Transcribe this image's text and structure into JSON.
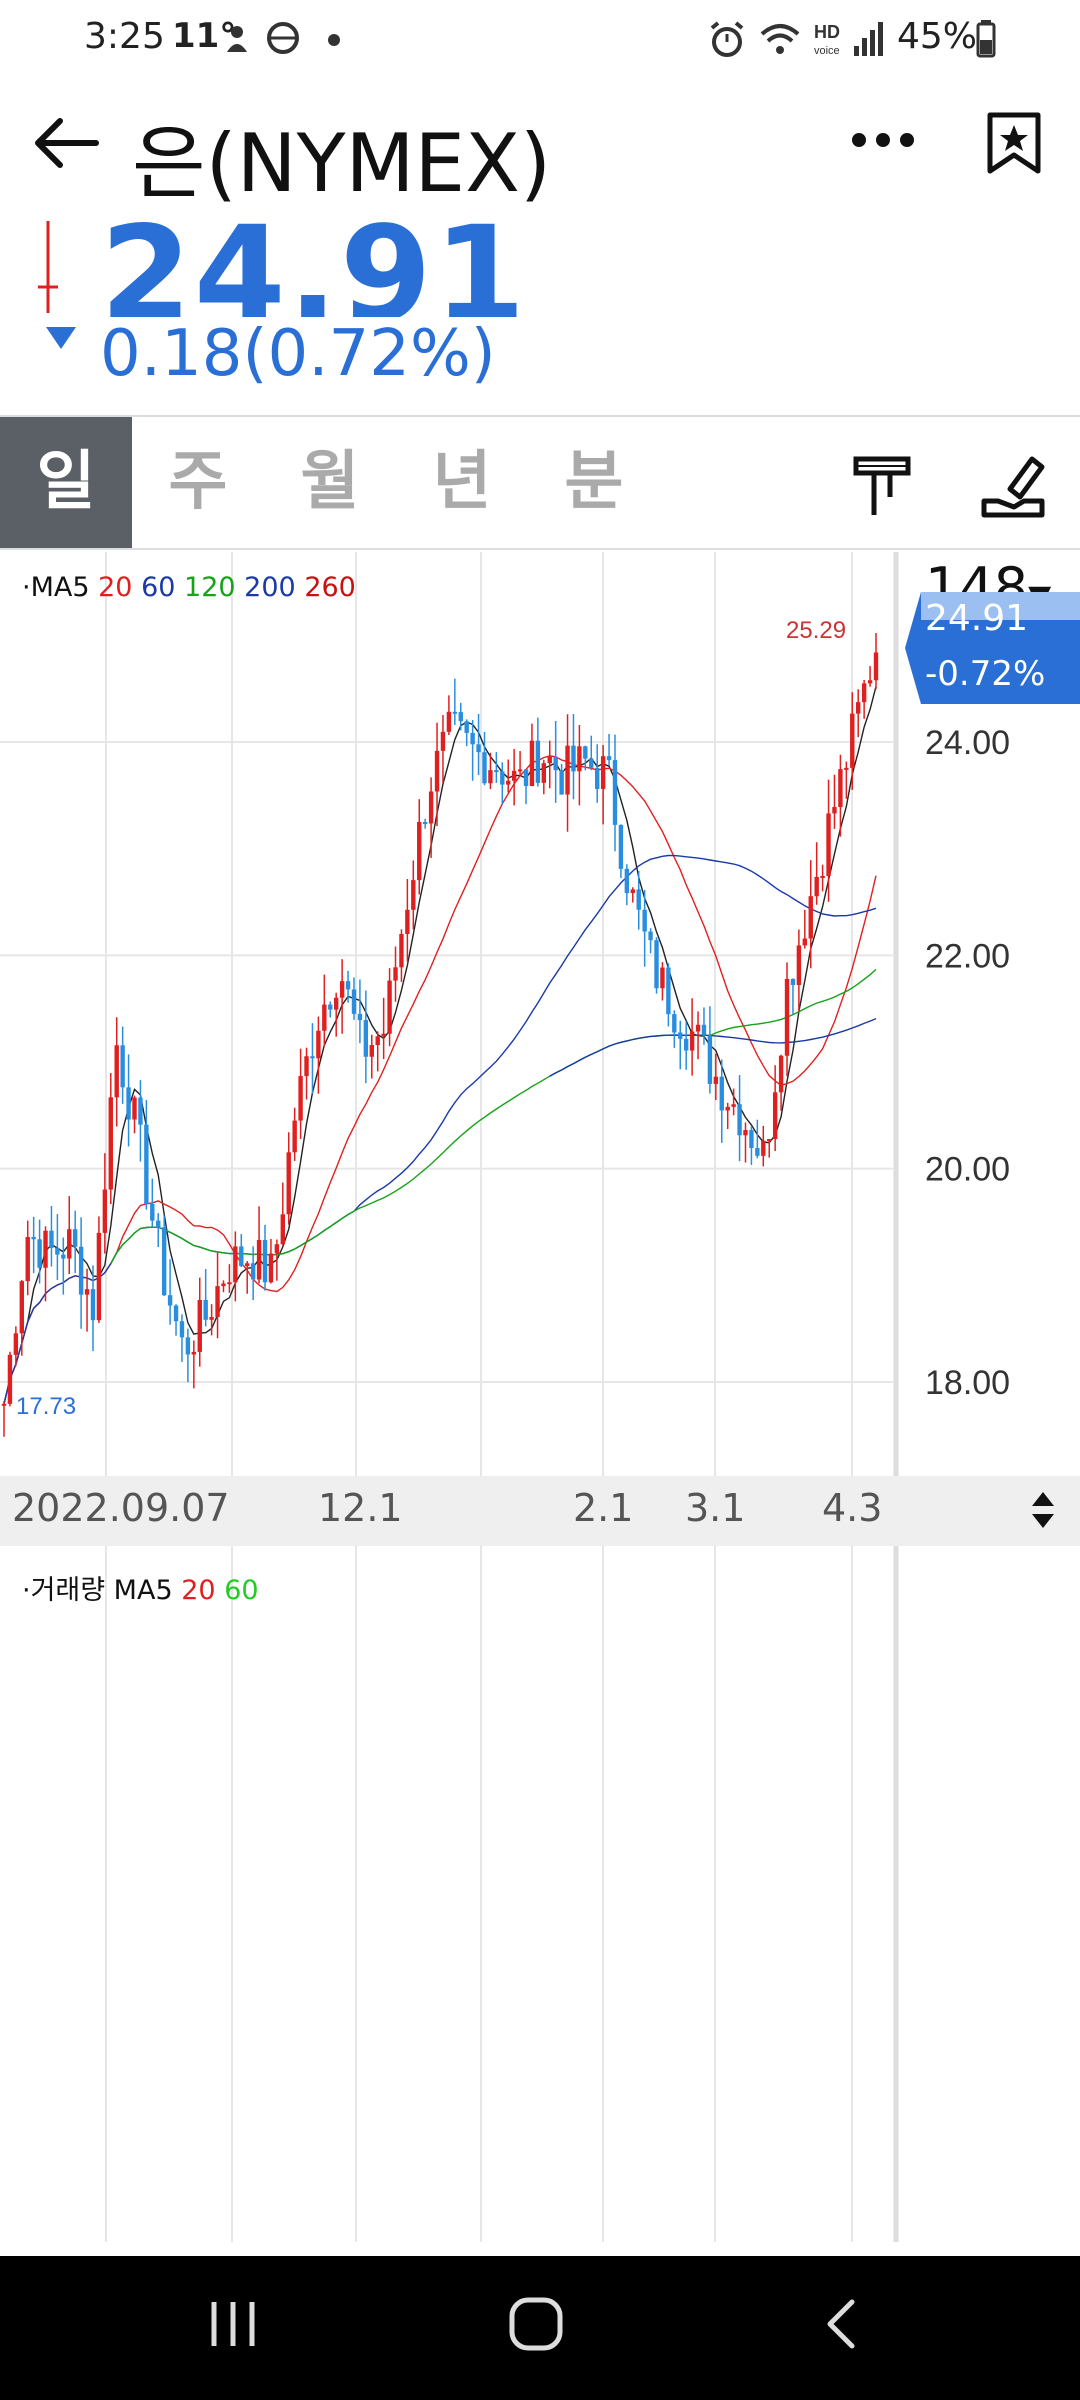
{
  "status": {
    "time": "3:25",
    "temp": "11°",
    "battery": "45%"
  },
  "header": {
    "title": "은(NYMEX)"
  },
  "price": {
    "value": "24.91",
    "change": "0.18(0.72%)",
    "direction": "down"
  },
  "tabs": [
    {
      "label": "일",
      "active": true
    },
    {
      "label": "주",
      "active": false
    },
    {
      "label": "월",
      "active": false
    },
    {
      "label": "년",
      "active": false
    },
    {
      "label": "분",
      "active": false
    }
  ],
  "chart_legend": {
    "prefix": "·MA5",
    "ma20": "20",
    "ma60": "60",
    "ma120": "120",
    "ma200": "200",
    "ma260": "260"
  },
  "volume_legend": {
    "prefix": "·거래량 MA5",
    "ma20": "20",
    "ma60": "60"
  },
  "y_axis": {
    "count": "148",
    "tag_value": "24.91",
    "tag_change": "-0.72%",
    "ticks": [
      "24.00",
      "22.00",
      "20.00",
      "18.00"
    ]
  },
  "annotations": {
    "high": "25.29",
    "low": "17.73"
  },
  "dates": [
    "2022.09.07",
    "12.1",
    "2.1",
    "3.1",
    "4.3"
  ],
  "colors": {
    "up": "#e02020",
    "down": "#2a8ee0",
    "accent": "#2a6fd6",
    "tab_active": "#5b5f66"
  },
  "chart_data": {
    "type": "candlestick",
    "ylim": [
      17.2,
      25.6
    ],
    "y_ticks": [
      24,
      22,
      20,
      18
    ],
    "x_labels": [
      "2022.09.07",
      "12.1",
      "2.1",
      "3.1",
      "4.3"
    ],
    "close_approx": [
      17.8,
      19.4,
      19.2,
      19.3,
      18.7,
      21.2,
      20.3,
      19.1,
      18.3,
      18.6,
      19.1,
      19.2,
      19.0,
      20.5,
      21.4,
      21.9,
      21.1,
      21.3,
      22.5,
      23.6,
      24.1,
      23.9,
      23.8,
      23.6,
      23.9,
      23.7,
      23.8,
      23.7,
      22.6,
      21.9,
      21.5,
      21.2,
      20.8,
      20.5,
      20.1,
      21.7,
      22.5,
      23.3,
      24.1,
      24.91
    ],
    "high_label": "25.29",
    "low_label": "17.73"
  }
}
